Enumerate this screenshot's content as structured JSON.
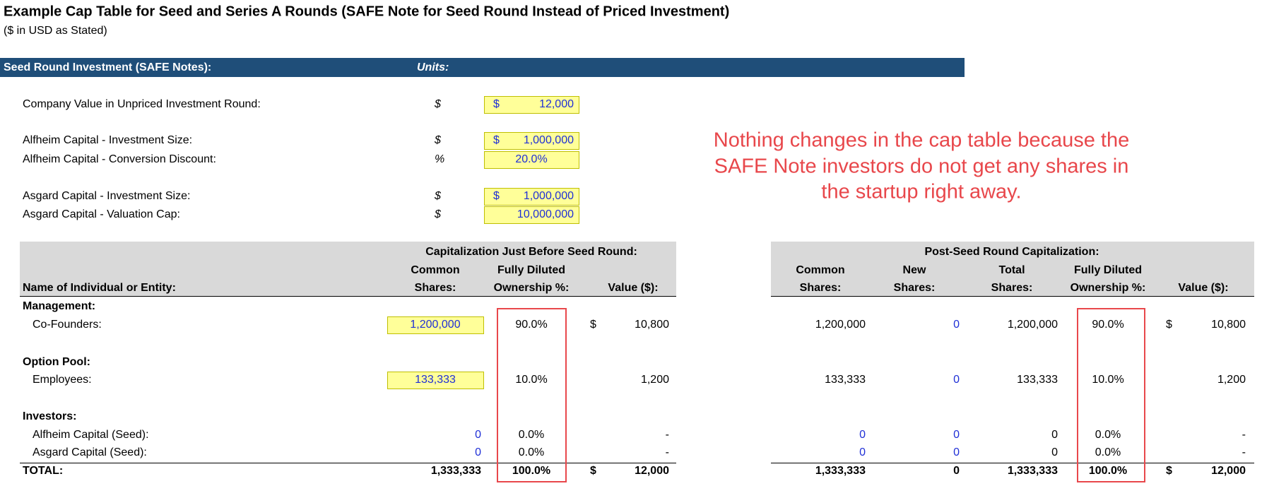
{
  "header": {
    "title": "Example Cap Table for Seed and Series A Rounds (SAFE Note for Seed Round Instead of Priced Investment)",
    "subtitle": "($ in USD as Stated)"
  },
  "section": {
    "title": "Seed Round Investment (SAFE Notes):",
    "units": "Units:"
  },
  "inputs": [
    {
      "label": "Company Value in Unpriced Investment Round:",
      "unit": "$",
      "prefix": "$",
      "value": "12,000"
    },
    {
      "label": "Alfheim Capital - Investment Size:",
      "unit": "$",
      "prefix": "$",
      "value": "1,000,000"
    },
    {
      "label": "Alfheim Capital - Conversion Discount:",
      "unit": "%",
      "value": "20.0%"
    },
    {
      "label": "Asgard Capital - Investment Size:",
      "unit": "$",
      "prefix": "$",
      "value": "1,000,000"
    },
    {
      "label": "Asgard Capital - Valuation Cap:",
      "unit": "$",
      "value": "10,000,000"
    }
  ],
  "annotation": [
    "Nothing changes in the cap table because the",
    "SAFE Note investors do not get any shares in",
    "the startup right away."
  ],
  "table": {
    "left_group": "Capitalization Just Before Seed Round:",
    "right_group": "Post-Seed Round Capitalization:",
    "name_header": "Name of Individual or Entity:",
    "left_headers": [
      [
        "Common",
        "Shares:"
      ],
      [
        "Fully Diluted",
        "Ownership %:"
      ],
      [
        "",
        "Value ($):"
      ]
    ],
    "right_headers": [
      [
        "Common",
        "Shares:"
      ],
      [
        "New",
        "Shares:"
      ],
      [
        "Total",
        "Shares:"
      ],
      [
        "Fully Diluted",
        "Ownership %:"
      ],
      [
        "",
        "Value ($):"
      ]
    ],
    "groups": [
      {
        "label": "Management:",
        "rows": [
          {
            "name": "Co-Founders:",
            "left": [
              "1,200,000",
              "90.0%",
              "$",
              "10,800"
            ],
            "right": [
              "1,200,000",
              "0",
              "1,200,000",
              "90.0%",
              "$",
              "10,800"
            ]
          }
        ]
      },
      {
        "label": "Option Pool:",
        "rows": [
          {
            "name": "Employees:",
            "left": [
              "133,333",
              "10.0%",
              "",
              "1,200"
            ],
            "right": [
              "133,333",
              "0",
              "133,333",
              "10.0%",
              "",
              "1,200"
            ]
          }
        ]
      },
      {
        "label": "Investors:",
        "rows": [
          {
            "name": "Alfheim Capital (Seed):",
            "left": [
              "0",
              "0.0%",
              "",
              "-"
            ],
            "right": [
              "0",
              "0",
              "0",
              "0.0%",
              "",
              "-"
            ]
          },
          {
            "name": "Asgard Capital (Seed):",
            "left": [
              "0",
              "0.0%",
              "",
              "-"
            ],
            "right": [
              "0",
              "0",
              "0",
              "0.0%",
              "",
              "-"
            ]
          }
        ]
      }
    ],
    "total": {
      "name": "TOTAL:",
      "left": [
        "1,333,333",
        "100.0%",
        "$",
        "12,000"
      ],
      "right": [
        "1,333,333",
        "0",
        "1,333,333",
        "100.0%",
        "$",
        "12,000"
      ]
    }
  }
}
